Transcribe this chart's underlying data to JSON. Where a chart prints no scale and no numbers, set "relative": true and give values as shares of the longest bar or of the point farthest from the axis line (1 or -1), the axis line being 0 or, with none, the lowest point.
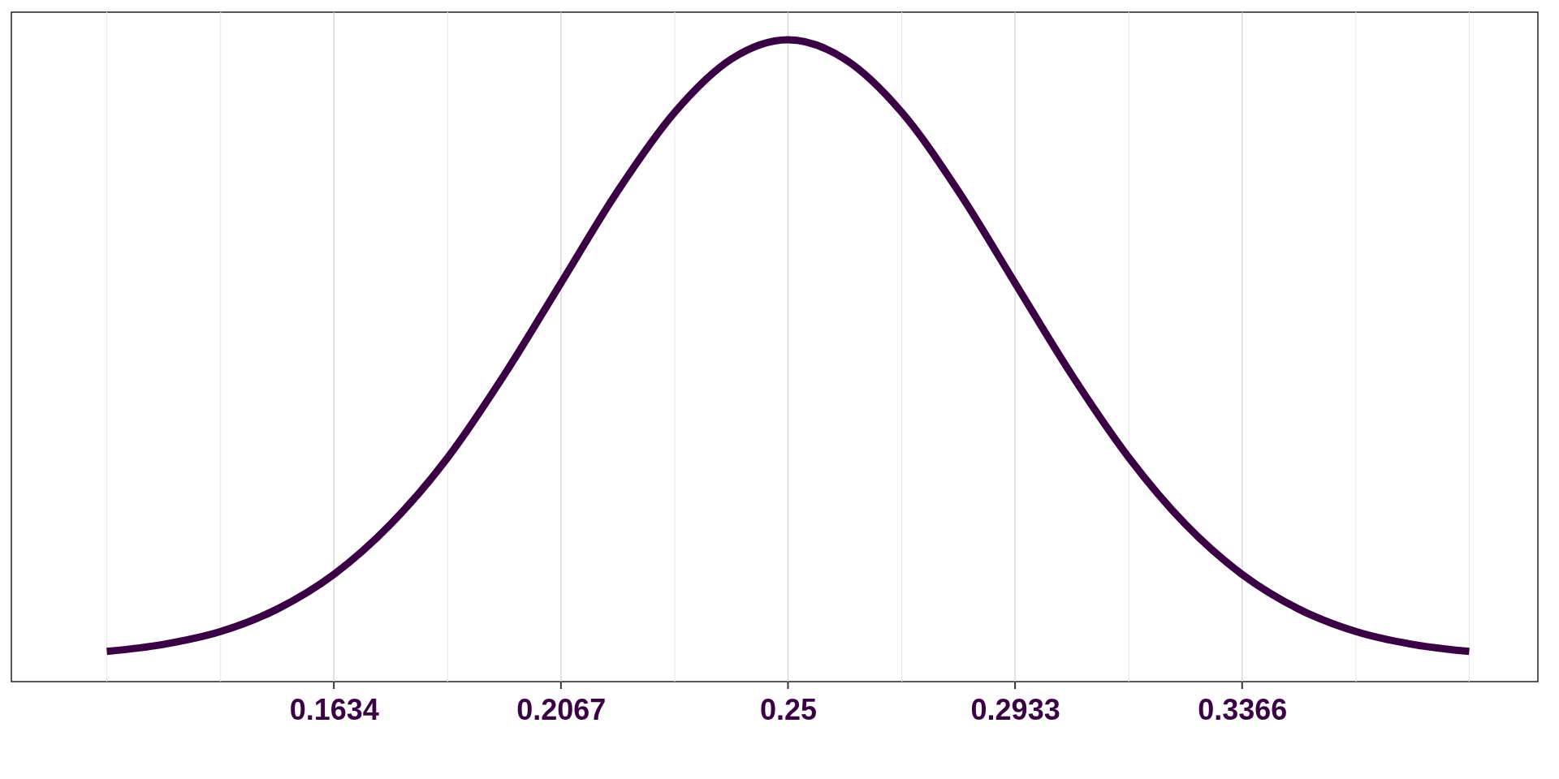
{
  "chart_data": {
    "type": "line",
    "relative": true,
    "x": [
      0.1201,
      0.1309,
      0.1418,
      0.1526,
      0.1634,
      0.1742,
      0.1851,
      0.1959,
      0.2067,
      0.2175,
      0.2284,
      0.2392,
      0.25,
      0.2608,
      0.2717,
      0.2825,
      0.2933,
      0.3041,
      0.315,
      0.3258,
      0.3366,
      0.3474,
      0.3583,
      0.3691,
      0.3799
    ],
    "series": [
      {
        "color": "#3b0145",
        "values": [
          0.047,
          0.058,
          0.078,
          0.113,
          0.167,
          0.245,
          0.349,
          0.478,
          0.621,
          0.764,
          0.887,
          0.97,
          1,
          0.97,
          0.887,
          0.764,
          0.621,
          0.478,
          0.349,
          0.245,
          0.167,
          0.113,
          0.078,
          0.058,
          0.047
        ]
      }
    ],
    "xlim": [
      0.1019,
      0.393
    ],
    "xticks": [
      {
        "value": 0.1201,
        "label": null
      },
      {
        "value": 0.1418,
        "label": null
      },
      0.1634,
      {
        "value": 0.1851,
        "label": null
      },
      0.2067,
      {
        "value": 0.2284,
        "label": null
      },
      0.25,
      {
        "value": 0.2717,
        "label": null
      },
      0.2933,
      {
        "value": 0.315,
        "label": null
      },
      0.3366,
      {
        "value": 0.3583,
        "label": null
      },
      {
        "value": 0.3799,
        "label": null
      }
    ],
    "grid": "x",
    "marker": "none",
    "line_style": "solid"
  }
}
